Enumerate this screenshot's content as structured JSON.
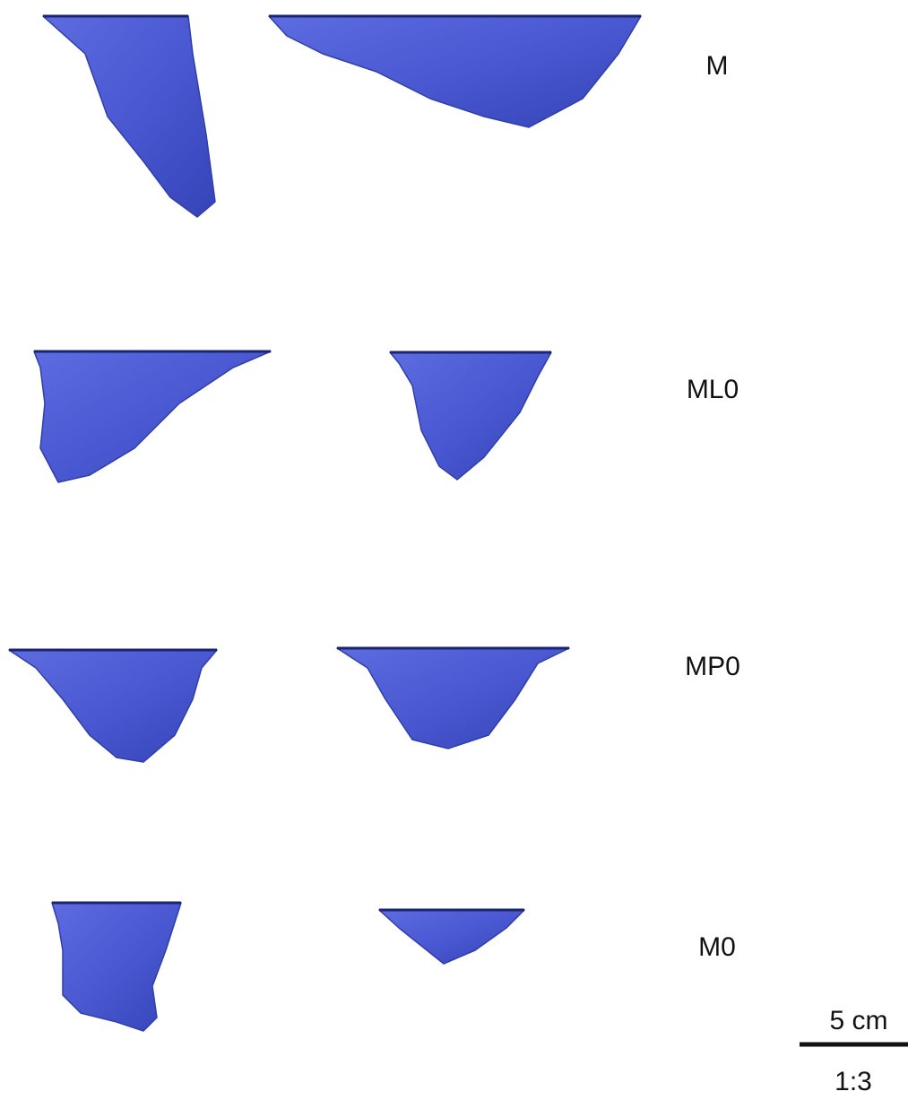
{
  "rows": [
    {
      "label": "M"
    },
    {
      "label": "ML0"
    },
    {
      "label": "MP0"
    },
    {
      "label": "M0"
    }
  ],
  "scale_bar": {
    "length": "5 cm",
    "ratio": "1:3"
  }
}
